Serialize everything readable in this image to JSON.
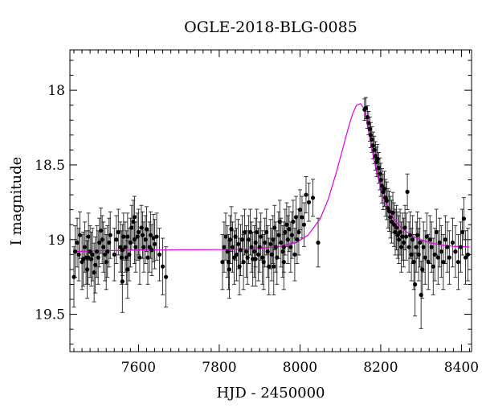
{
  "chart_data": {
    "type": "scatter",
    "title": "OGLE-2018-BLG-0085",
    "xlabel": "HJD - 2450000",
    "ylabel": "I magnitude",
    "xlim": [
      7430,
      8425
    ],
    "ylim": [
      19.75,
      17.73
    ],
    "y_inverted": true,
    "x_ticks": [
      7600,
      7800,
      8000,
      8200,
      8400
    ],
    "y_ticks": [
      18,
      18.5,
      19,
      19.5
    ],
    "x_tick_labels": [
      "7600",
      "7800",
      "8000",
      "8200",
      "8400"
    ],
    "y_tick_labels": [
      "18",
      "18.5",
      "19",
      "19.5"
    ],
    "grid": false,
    "colors": {
      "data": "#000000",
      "model": "#e000e0",
      "frame": "#000000"
    },
    "model": {
      "type": "line",
      "x": [
        7440,
        7500,
        7600,
        7700,
        7800,
        7850,
        7900,
        7950,
        7990,
        8020,
        8050,
        8070,
        8090,
        8110,
        8120,
        8130,
        8140,
        8150,
        8158,
        8165,
        8170,
        8175,
        8180,
        8190,
        8200,
        8210,
        8220,
        8230,
        8240,
        8260,
        8280,
        8300,
        8320,
        8350,
        8380,
        8420
      ],
      "y": [
        19.08,
        19.075,
        19.07,
        19.068,
        19.067,
        19.065,
        19.06,
        19.045,
        19.02,
        18.97,
        18.86,
        18.73,
        18.55,
        18.35,
        18.25,
        18.16,
        18.1,
        18.09,
        18.12,
        18.2,
        18.28,
        18.35,
        18.42,
        18.55,
        18.65,
        18.74,
        18.8,
        18.85,
        18.89,
        18.94,
        18.98,
        19.0,
        19.02,
        19.035,
        19.045,
        19.05
      ]
    },
    "points": [
      [
        7440,
        19.25
      ],
      [
        7443,
        19.08
      ],
      [
        7448,
        19.02
      ],
      [
        7452,
        19.1
      ],
      [
        7455,
        18.97
      ],
      [
        7460,
        19.15
      ],
      [
        7463,
        19.13
      ],
      [
        7467,
        19.05
      ],
      [
        7470,
        19.12
      ],
      [
        7473,
        19.2
      ],
      [
        7476,
        18.98
      ],
      [
        7480,
        19.08
      ],
      [
        7483,
        19.13
      ],
      [
        7486,
        19.1
      ],
      [
        7490,
        19.22
      ],
      [
        7493,
        19.17
      ],
      [
        7497,
        19.08
      ],
      [
        7500,
        19.12
      ],
      [
        7503,
        19.02
      ],
      [
        7507,
        18.94
      ],
      [
        7510,
        19.0
      ],
      [
        7513,
        19.05
      ],
      [
        7517,
        19.1
      ],
      [
        7520,
        19.15
      ],
      [
        7523,
        19.08
      ],
      [
        7527,
        19.02
      ],
      [
        7530,
        18.97
      ],
      [
        7540,
        19.1
      ],
      [
        7545,
        19.0
      ],
      [
        7550,
        18.95
      ],
      [
        7555,
        19.05
      ],
      [
        7558,
        19.12
      ],
      [
        7560,
        19.07
      ],
      [
        7563,
        18.98
      ],
      [
        7567,
        19.05
      ],
      [
        7570,
        19.12
      ],
      [
        7573,
        18.98
      ],
      [
        7577,
        19.1
      ],
      [
        7580,
        19.02
      ],
      [
        7583,
        18.92
      ],
      [
        7587,
        18.88
      ],
      [
        7590,
        19.0
      ],
      [
        7593,
        19.05
      ],
      [
        7597,
        18.98
      ],
      [
        7600,
        18.95
      ],
      [
        7603,
        19.12
      ],
      [
        7607,
        18.92
      ],
      [
        7610,
        18.97
      ],
      [
        7613,
        19.05
      ],
      [
        7617,
        19.0
      ],
      [
        7620,
        18.93
      ],
      [
        7623,
        19.12
      ],
      [
        7627,
        19.05
      ],
      [
        7630,
        18.97
      ],
      [
        7633,
        19.07
      ],
      [
        7637,
        18.99
      ],
      [
        7640,
        19.03
      ],
      [
        7645,
        18.98
      ],
      [
        7652,
        19.1
      ],
      [
        7660,
        19.18
      ],
      [
        7668,
        19.25
      ],
      [
        7560,
        19.28
      ],
      [
        7573,
        19.2
      ],
      [
        7590,
        18.85
      ],
      [
        7475,
        19.12
      ],
      [
        7808,
        19.15
      ],
      [
        7812,
        19.05
      ],
      [
        7816,
        18.98
      ],
      [
        7820,
        19.08
      ],
      [
        7823,
        19.15
      ],
      [
        7827,
        19.0
      ],
      [
        7830,
        18.93
      ],
      [
        7833,
        19.05
      ],
      [
        7837,
        19.12
      ],
      [
        7840,
        18.98
      ],
      [
        7843,
        19.1
      ],
      [
        7847,
        19.03
      ],
      [
        7850,
        19.18
      ],
      [
        7853,
        19.07
      ],
      [
        7857,
        19.0
      ],
      [
        7860,
        19.15
      ],
      [
        7863,
        18.95
      ],
      [
        7867,
        19.08
      ],
      [
        7870,
        19.12
      ],
      [
        7873,
        19.0
      ],
      [
        7877,
        18.95
      ],
      [
        7880,
        19.05
      ],
      [
        7883,
        19.13
      ],
      [
        7887,
        19.08
      ],
      [
        7890,
        19.02
      ],
      [
        7893,
        18.95
      ],
      [
        7897,
        19.1
      ],
      [
        7900,
        19.05
      ],
      [
        7903,
        18.98
      ],
      [
        7907,
        19.12
      ],
      [
        7910,
        19.15
      ],
      [
        7913,
        19.02
      ],
      [
        7917,
        18.95
      ],
      [
        7920,
        19.08
      ],
      [
        7923,
        19.18
      ],
      [
        7927,
        19.03
      ],
      [
        7930,
        19.1
      ],
      [
        7933,
        19.0
      ],
      [
        7937,
        18.92
      ],
      [
        7940,
        19.05
      ],
      [
        7943,
        19.12
      ],
      [
        7947,
        18.97
      ],
      [
        7950,
        18.88
      ],
      [
        7953,
        19.02
      ],
      [
        7957,
        19.08
      ],
      [
        7960,
        19.15
      ],
      [
        7963,
        18.95
      ],
      [
        7967,
        18.9
      ],
      [
        7970,
        19.0
      ],
      [
        7973,
        18.93
      ],
      [
        7977,
        19.05
      ],
      [
        7980,
        18.97
      ],
      [
        7983,
        18.88
      ],
      [
        7987,
        19.1
      ],
      [
        7990,
        18.85
      ],
      [
        7993,
        19.0
      ],
      [
        7997,
        18.95
      ],
      [
        8000,
        18.8
      ],
      [
        8005,
        18.85
      ],
      [
        8010,
        18.9
      ],
      [
        8015,
        18.7
      ],
      [
        8022,
        18.75
      ],
      [
        8032,
        18.72
      ],
      [
        8045,
        19.02
      ],
      [
        7825,
        19.2
      ],
      [
        7890,
        19.13
      ],
      [
        7935,
        19.18
      ],
      [
        7960,
        19.05
      ],
      [
        8160,
        18.13
      ],
      [
        8163,
        18.12
      ],
      [
        8167,
        18.18
      ],
      [
        8170,
        18.22
      ],
      [
        8173,
        18.26
      ],
      [
        8175,
        18.3
      ],
      [
        8178,
        18.33
      ],
      [
        8181,
        18.37
      ],
      [
        8184,
        18.4
      ],
      [
        8187,
        18.44
      ],
      [
        8190,
        18.48
      ],
      [
        8192,
        18.46
      ],
      [
        8195,
        18.52
      ],
      [
        8198,
        18.56
      ],
      [
        8200,
        18.6
      ],
      [
        8203,
        18.64
      ],
      [
        8206,
        18.68
      ],
      [
        8209,
        18.66
      ],
      [
        8212,
        18.72
      ],
      [
        8215,
        18.74
      ],
      [
        8218,
        18.79
      ],
      [
        8221,
        18.81
      ],
      [
        8224,
        18.85
      ],
      [
        8227,
        18.88
      ],
      [
        8230,
        18.82
      ],
      [
        8233,
        18.9
      ],
      [
        8236,
        18.95
      ],
      [
        8239,
        18.92
      ],
      [
        8242,
        18.97
      ],
      [
        8245,
        19.0
      ],
      [
        8248,
        18.95
      ],
      [
        8251,
        19.05
      ],
      [
        8254,
        18.98
      ],
      [
        8257,
        19.02
      ],
      [
        8260,
        18.92
      ],
      [
        8263,
        18.98
      ],
      [
        8266,
        18.68
      ],
      [
        8270,
        19.05
      ],
      [
        8273,
        18.97
      ],
      [
        8276,
        19.1
      ],
      [
        8279,
        19.0
      ],
      [
        8282,
        19.15
      ],
      [
        8285,
        19.3
      ],
      [
        8288,
        19.05
      ],
      [
        8291,
        18.97
      ],
      [
        8294,
        19.1
      ],
      [
        8297,
        19.02
      ],
      [
        8300,
        19.37
      ],
      [
        8303,
        19.2
      ],
      [
        8306,
        19.05
      ],
      [
        8310,
        19.12
      ],
      [
        8314,
        18.98
      ],
      [
        8318,
        19.15
      ],
      [
        8322,
        19.0
      ],
      [
        8326,
        19.05
      ],
      [
        8330,
        19.18
      ],
      [
        8334,
        19.1
      ],
      [
        8338,
        18.95
      ],
      [
        8342,
        19.12
      ],
      [
        8346,
        19.02
      ],
      [
        8350,
        19.08
      ],
      [
        8355,
        19.15
      ],
      [
        8360,
        19.0
      ],
      [
        8365,
        19.05
      ],
      [
        8370,
        19.12
      ],
      [
        8378,
        19.02
      ],
      [
        8385,
        19.08
      ],
      [
        8392,
        19.15
      ],
      [
        8398,
        19.05
      ],
      [
        8402,
        18.95
      ],
      [
        8406,
        18.86
      ],
      [
        8410,
        19.12
      ],
      [
        8416,
        19.1
      ]
    ]
  }
}
